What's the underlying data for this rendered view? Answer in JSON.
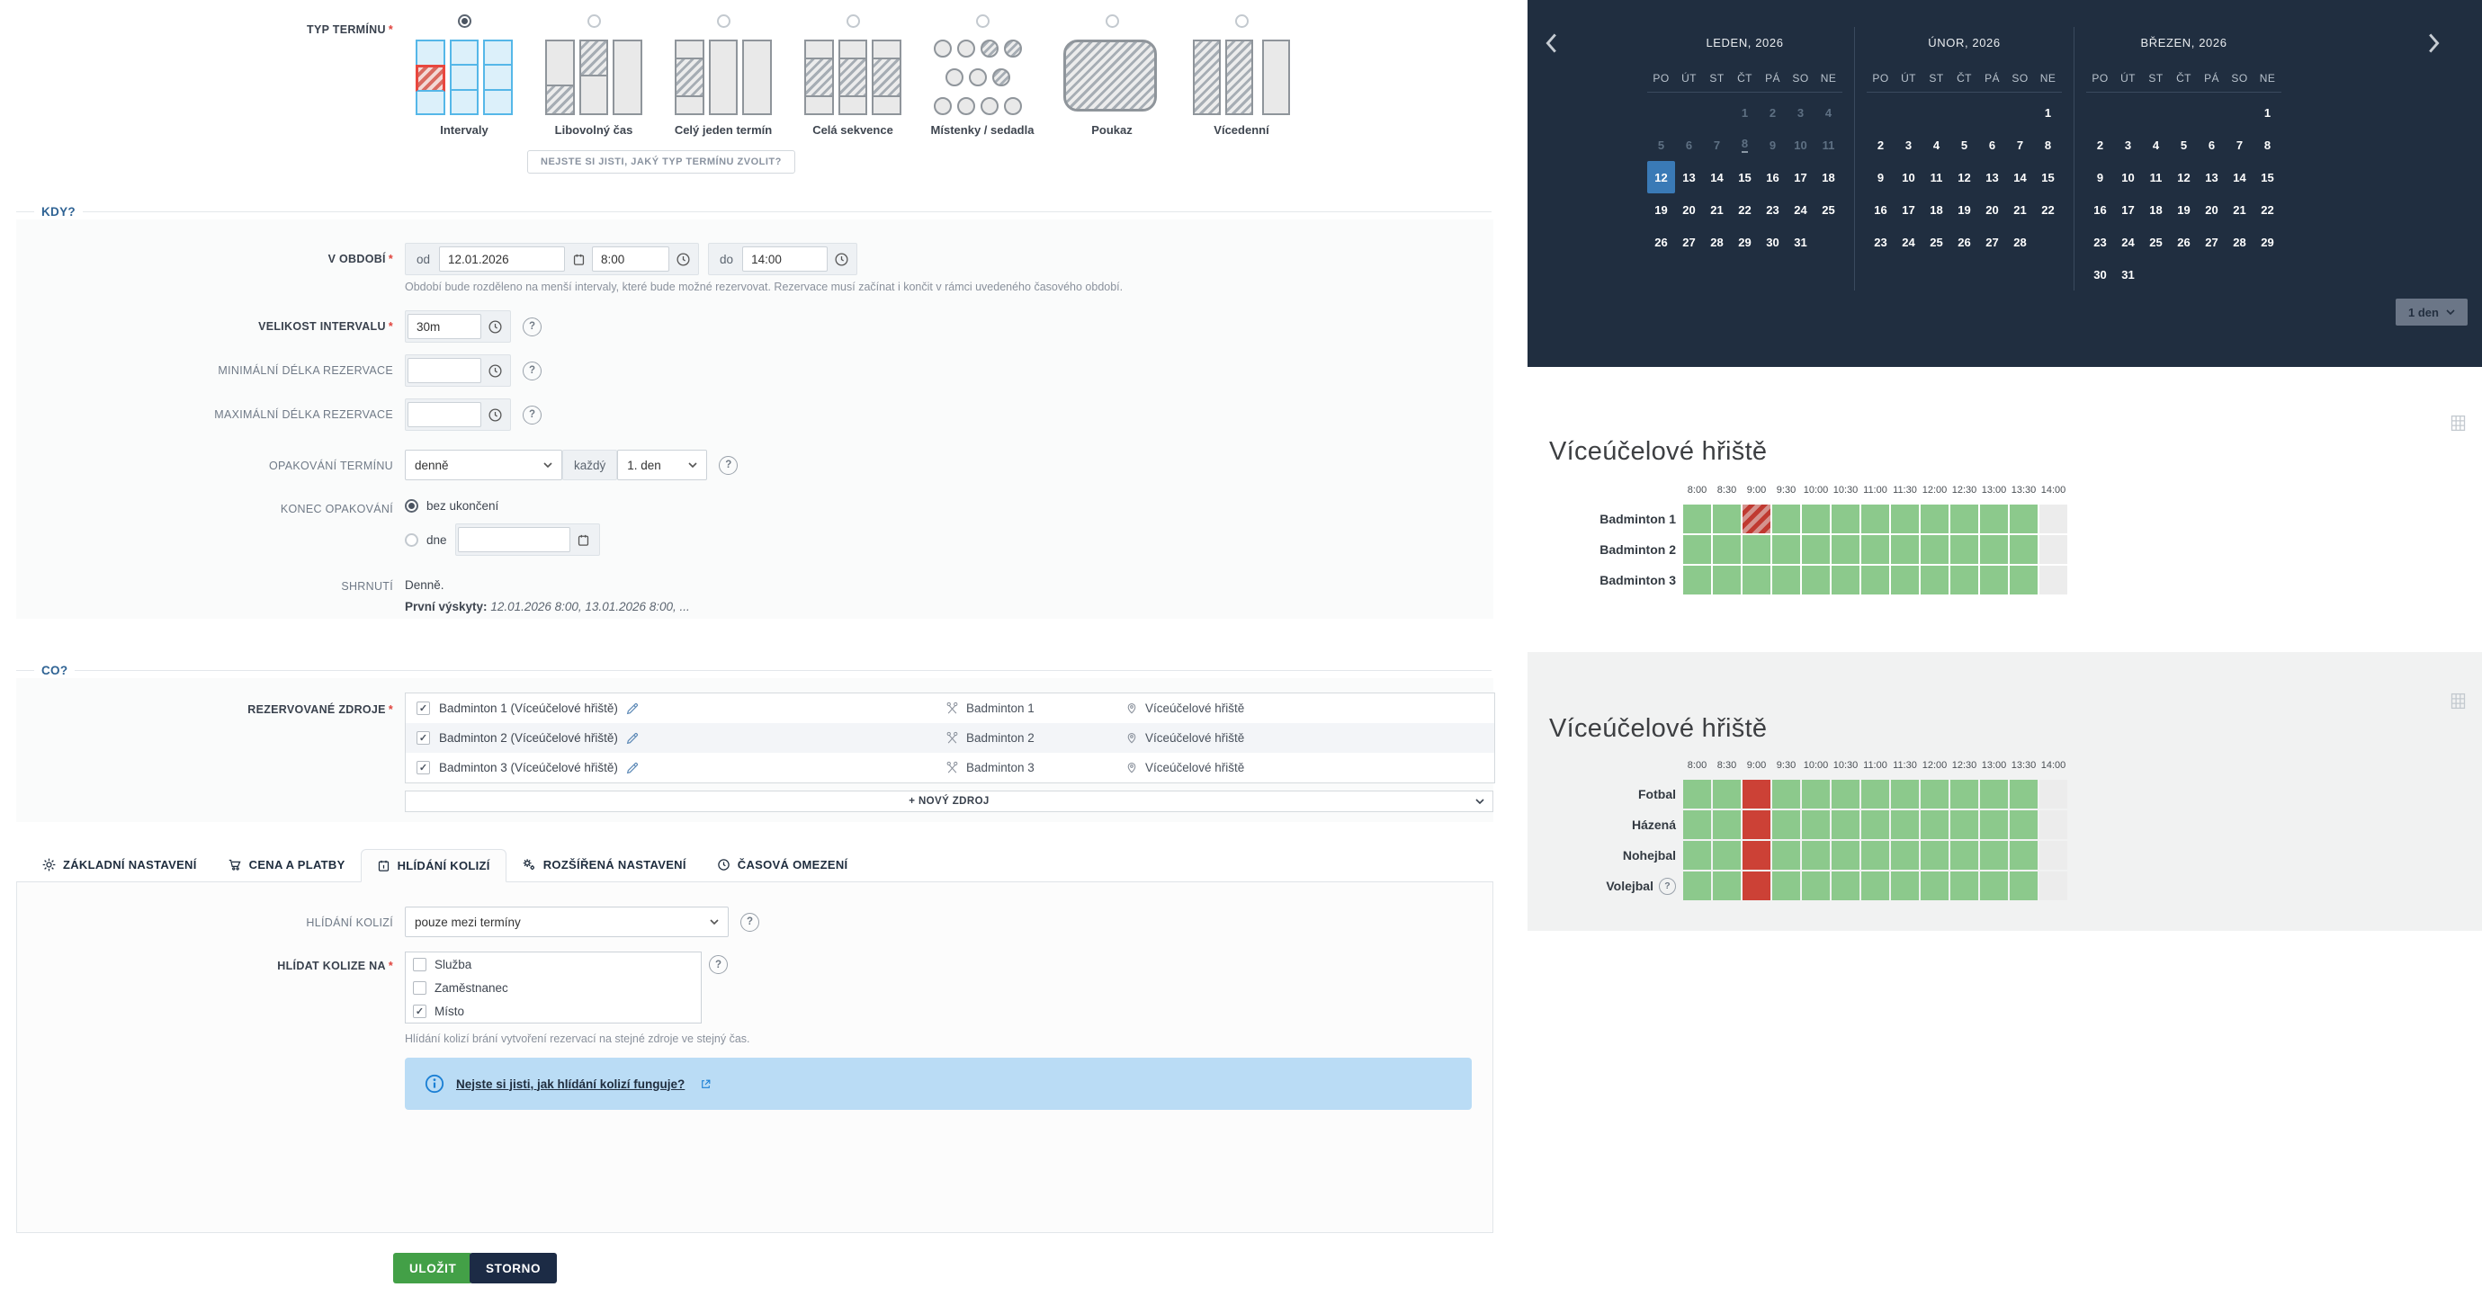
{
  "form": {
    "type": {
      "label": "TYP TERMÍNU",
      "options": [
        {
          "label": "Intervaly",
          "icon": "intervals-icon",
          "selected": true
        },
        {
          "label": "Libovolný čas",
          "icon": "free-time-icon",
          "selected": false
        },
        {
          "label": "Celý jeden termín",
          "icon": "single-term-icon",
          "selected": false
        },
        {
          "label": "Celá sekvence",
          "icon": "sequence-icon",
          "selected": false
        },
        {
          "label": "Místenky / sedadla",
          "icon": "seats-icon",
          "selected": false
        },
        {
          "label": "Poukaz",
          "icon": "voucher-icon",
          "selected": false
        },
        {
          "label": "Vícedenní",
          "icon": "multiday-icon",
          "selected": false
        }
      ],
      "help_button": "NEJSTE SI JISTI, JAKÝ TYP TERMÍNU ZVOLIT?"
    },
    "when": {
      "legend": "KDY?",
      "period": {
        "label": "V OBDOBÍ",
        "from_prefix": "od",
        "date": "12.01.2026",
        "time_from": "8:00",
        "to_prefix": "do",
        "time_to": "14:00",
        "helper": "Období bude rozděleno na menší intervaly, které bude možné rezervovat. Rezervace musí začínat i končit v rámci uvedeného časového období."
      },
      "interval_size": {
        "label": "VELIKOST INTERVALU",
        "value": "30m"
      },
      "min_length": {
        "label": "MINIMÁLNÍ DÉLKA REZERVACE",
        "value": ""
      },
      "max_length": {
        "label": "MAXIMÁLNÍ DÉLKA REZERVACE",
        "value": ""
      },
      "repeat": {
        "label": "OPAKOVÁNÍ TERMÍNU",
        "frequency": "denně",
        "every_label": "každý",
        "interval": "1. den"
      },
      "repeat_end": {
        "label": "KONEC OPAKOVÁNÍ",
        "no_end": "bez ukončení",
        "on_date": "dne",
        "date_value": ""
      },
      "summary": {
        "label": "SHRNUTÍ",
        "text": "Denně.",
        "occurrences_label": "První výskyty:",
        "occurrences": "12.01.2026 8:00, 13.01.2026 8:00, ..."
      }
    },
    "what": {
      "legend": "CO?",
      "resources_label": "REZERVOVANÉ ZDROJE",
      "resources": [
        {
          "checked": true,
          "name": "Badminton 1 (Víceúčelové hřiště)",
          "service": "Badminton 1",
          "place": "Víceúčelové hřiště"
        },
        {
          "checked": true,
          "name": "Badminton 2 (Víceúčelové hřiště)",
          "service": "Badminton 2",
          "place": "Víceúčelové hřiště"
        },
        {
          "checked": true,
          "name": "Badminton 3 (Víceúčelové hřiště)",
          "service": "Badminton 3",
          "place": "Víceúčelové hřiště"
        }
      ],
      "new_resource": "+ NOVÝ ZDROJ"
    },
    "tabs": [
      {
        "label": "ZÁKLADNÍ NASTAVENÍ",
        "icon": "gear-icon",
        "active": false
      },
      {
        "label": "CENA A PLATBY",
        "icon": "cart-icon",
        "active": false
      },
      {
        "label": "HLÍDÁNÍ KOLIZÍ",
        "icon": "calendar-icon",
        "active": true
      },
      {
        "label": "ROZŠÍŘENÁ NASTAVENÍ",
        "icon": "gears-icon",
        "active": false
      },
      {
        "label": "ČASOVÁ OMEZENÍ",
        "icon": "clock-icon",
        "active": false
      }
    ],
    "collisions": {
      "mode_label": "HLÍDÁNÍ KOLIZÍ",
      "mode_value": "pouze mezi termíny",
      "watch_label": "HLÍDAT KOLIZE NA",
      "options": [
        {
          "label": "Služba",
          "checked": false
        },
        {
          "label": "Zaměstnanec",
          "checked": false
        },
        {
          "label": "Místo",
          "checked": true
        }
      ],
      "helper": "Hlídání kolizí brání vytvoření rezervací na stejné zdroje ve stejný čas.",
      "info_link": "Nejste si jisti, jak hlídání kolizí funguje?"
    },
    "actions": {
      "save": "ULOŽIT",
      "cancel": "STORNO"
    }
  },
  "calendar": {
    "day_headers": [
      "PO",
      "ÚT",
      "ST",
      "ČT",
      "PÁ",
      "SO",
      "NE"
    ],
    "months": [
      {
        "title": "LEDEN, 2026",
        "weeks": [
          [
            "",
            "",
            "",
            "1d",
            "2d",
            "3d",
            "4d"
          ],
          [
            "5d",
            "6d",
            "7d",
            "8t",
            "9d",
            "10d",
            "11d"
          ],
          [
            "12s",
            "13",
            "14",
            "15",
            "16",
            "17",
            "18"
          ],
          [
            "19",
            "20",
            "21",
            "22",
            "23",
            "24",
            "25"
          ],
          [
            "26",
            "27",
            "28",
            "29",
            "30",
            "31",
            ""
          ]
        ]
      },
      {
        "title": "ÚNOR, 2026",
        "weeks": [
          [
            "",
            "",
            "",
            "",
            "",
            "",
            "1"
          ],
          [
            "2",
            "3",
            "4",
            "5",
            "6",
            "7",
            "8"
          ],
          [
            "9",
            "10",
            "11",
            "12",
            "13",
            "14",
            "15"
          ],
          [
            "16",
            "17",
            "18",
            "19",
            "20",
            "21",
            "22"
          ],
          [
            "23",
            "24",
            "25",
            "26",
            "27",
            "28",
            ""
          ]
        ]
      },
      {
        "title": "BŘEZEN, 2026",
        "weeks": [
          [
            "",
            "",
            "",
            "",
            "",
            "",
            "1"
          ],
          [
            "2",
            "3",
            "4",
            "5",
            "6",
            "7",
            "8"
          ],
          [
            "9",
            "10",
            "11",
            "12",
            "13",
            "14",
            "15"
          ],
          [
            "16",
            "17",
            "18",
            "19",
            "20",
            "21",
            "22"
          ],
          [
            "23",
            "24",
            "25",
            "26",
            "27",
            "28",
            "29"
          ],
          [
            "30",
            "31",
            "",
            "",
            "",
            "",
            ""
          ]
        ]
      }
    ],
    "range_select": "1 den"
  },
  "schedules": [
    {
      "title": "Víceúčelové hřiště",
      "times": [
        "8:00",
        "8:30",
        "9:00",
        "9:30",
        "10:00",
        "10:30",
        "11:00",
        "11:30",
        "12:00",
        "12:30",
        "13:00",
        "13:30",
        "14:00"
      ],
      "rows": [
        {
          "label": "Badminton 1",
          "help": false,
          "cells": [
            "free",
            "free",
            "conflict",
            "free",
            "free",
            "free",
            "free",
            "free",
            "free",
            "free",
            "free",
            "free",
            "closed"
          ]
        },
        {
          "label": "Badminton 2",
          "help": false,
          "cells": [
            "free",
            "free",
            "free",
            "free",
            "free",
            "free",
            "free",
            "free",
            "free",
            "free",
            "free",
            "free",
            "closed"
          ]
        },
        {
          "label": "Badminton 3",
          "help": false,
          "cells": [
            "free",
            "free",
            "free",
            "free",
            "free",
            "free",
            "free",
            "free",
            "free",
            "free",
            "free",
            "free",
            "closed"
          ]
        }
      ]
    },
    {
      "title": "Víceúčelové hřiště",
      "times": [
        "8:00",
        "8:30",
        "9:00",
        "9:30",
        "10:00",
        "10:30",
        "11:00",
        "11:30",
        "12:00",
        "12:30",
        "13:00",
        "13:30",
        "14:00"
      ],
      "rows": [
        {
          "label": "Fotbal",
          "help": false,
          "cells": [
            "free",
            "free",
            "reserved",
            "free",
            "free",
            "free",
            "free",
            "free",
            "free",
            "free",
            "free",
            "free",
            "closed"
          ]
        },
        {
          "label": "Házená",
          "help": false,
          "cells": [
            "free",
            "free",
            "reserved",
            "free",
            "free",
            "free",
            "free",
            "free",
            "free",
            "free",
            "free",
            "free",
            "closed"
          ]
        },
        {
          "label": "Nohejbal",
          "help": false,
          "cells": [
            "free",
            "free",
            "reserved",
            "free",
            "free",
            "free",
            "free",
            "free",
            "free",
            "free",
            "free",
            "free",
            "closed"
          ]
        },
        {
          "label": "Volejbal",
          "help": true,
          "cells": [
            "free",
            "free",
            "reserved",
            "free",
            "free",
            "free",
            "free",
            "free",
            "free",
            "free",
            "free",
            "free",
            "closed"
          ]
        }
      ]
    }
  ],
  "colors": {
    "accent_blue": "#3a7ab6",
    "free_green": "#8cc98c",
    "reserved_red": "#cc4136",
    "panel_dark": "#202e40",
    "save_green": "#43a047",
    "cancel_navy": "#1c2b45"
  }
}
